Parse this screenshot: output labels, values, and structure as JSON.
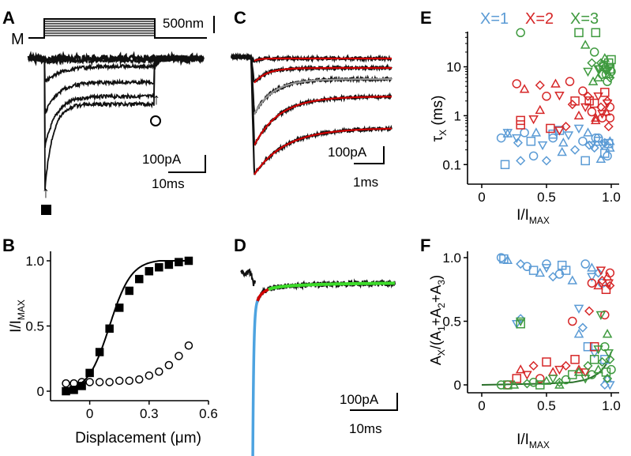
{
  "panel_labels": {
    "A": "A",
    "B": "B",
    "C": "C",
    "D": "D",
    "E": "E",
    "F": "F"
  },
  "colors": {
    "x1": "#5b9bd5",
    "x2": "#d62728",
    "x3": "#3f9a3f",
    "trace": "#111111",
    "fit_red": "#d00000",
    "fit_gray": "#9a9a9a",
    "fit_green": "#3ddc2a",
    "fit_blue": "#4da3e0"
  },
  "panel_a": {
    "stimulus_label": "M",
    "stim_scale_label": "500nm",
    "current_scale_label": "100pA",
    "time_scale_label": "10ms",
    "marker_filled": "filled-square",
    "marker_open": "open-circle"
  },
  "panel_c": {
    "current_scale_label": "100pA",
    "time_scale_label": "1ms"
  },
  "panel_d": {
    "current_scale_label": "100pA",
    "time_scale_label": "10ms"
  },
  "chart_data": [
    {
      "panel": "B",
      "type": "scatter",
      "title": "",
      "xlabel": "Displacement (μm)",
      "ylabel_main": "I/I",
      "ylabel_sub": "MAX",
      "xlim": [
        -0.15,
        0.6
      ],
      "ylim": [
        0,
        1.05
      ],
      "xticks": [
        0,
        0.3,
        0.6
      ],
      "xtick_labels": [
        "0",
        "0.3",
        "0.6"
      ],
      "yticks": [
        0,
        0.5,
        1.0
      ],
      "ytick_labels": [
        "0",
        "0.5",
        "1.0"
      ],
      "series": [
        {
          "name": "peak current",
          "marker": "filled-square",
          "x": [
            -0.12,
            -0.08,
            -0.04,
            0.0,
            0.05,
            0.1,
            0.15,
            0.2,
            0.25,
            0.3,
            0.35,
            0.4,
            0.45,
            0.5
          ],
          "y": [
            0.0,
            0.01,
            0.04,
            0.14,
            0.3,
            0.48,
            0.64,
            0.77,
            0.86,
            0.92,
            0.95,
            0.97,
            0.99,
            1.0
          ]
        },
        {
          "name": "steady-state current",
          "marker": "open-circle",
          "x": [
            -0.12,
            -0.08,
            -0.04,
            0.0,
            0.05,
            0.1,
            0.15,
            0.2,
            0.25,
            0.3,
            0.35,
            0.4,
            0.45,
            0.5
          ],
          "y": [
            0.06,
            0.06,
            0.07,
            0.07,
            0.07,
            0.07,
            0.08,
            0.08,
            0.09,
            0.12,
            0.15,
            0.2,
            0.27,
            0.35
          ]
        }
      ]
    },
    {
      "panel": "E",
      "type": "scatter",
      "xlabel_main": "I/I",
      "xlabel_sub": "MAX",
      "ylabel_main": "τ",
      "ylabel_sub": "X",
      "ylabel_tail": " (ms)",
      "xlim": [
        0,
        1.04
      ],
      "ylim_log10": [
        -1.4,
        1.72
      ],
      "xticks": [
        0,
        0.5,
        1.0
      ],
      "xtick_labels": [
        "0",
        "0.5",
        "1.0"
      ],
      "yticks": [
        0.1,
        1,
        10
      ],
      "ytick_labels": [
        "0.1",
        "1",
        "10"
      ],
      "series": [
        {
          "name": "X=1",
          "color_key": "x1",
          "x": [
            0.15,
            0.18,
            0.2,
            0.27,
            0.3,
            0.33,
            0.38,
            0.42,
            0.47,
            0.5,
            0.55,
            0.6,
            0.63,
            0.67,
            0.72,
            0.78,
            0.8,
            0.82,
            0.85,
            0.87,
            0.88,
            0.9,
            0.92,
            0.93,
            0.95,
            0.97,
            0.98,
            0.99,
            0.2,
            0.28,
            0.4,
            0.55,
            0.62,
            0.75,
            0.83,
            0.9,
            0.95,
            0.99
          ],
          "y": [
            0.35,
            0.1,
            0.43,
            0.35,
            0.12,
            0.45,
            0.3,
            0.45,
            0.25,
            0.12,
            0.35,
            0.5,
            0.28,
            0.4,
            0.2,
            0.3,
            0.12,
            0.45,
            0.25,
            0.22,
            0.35,
            0.3,
            0.13,
            0.25,
            0.28,
            0.15,
            0.27,
            0.22,
            0.45,
            0.28,
            0.15,
            0.42,
            0.18,
            0.55,
            0.25,
            0.35,
            0.17,
            0.3
          ]
        },
        {
          "name": "X=2",
          "color_key": "x2",
          "x": [
            0.27,
            0.3,
            0.33,
            0.4,
            0.45,
            0.5,
            0.53,
            0.57,
            0.6,
            0.65,
            0.68,
            0.72,
            0.75,
            0.8,
            0.82,
            0.85,
            0.87,
            0.88,
            0.9,
            0.92,
            0.93,
            0.95,
            0.96,
            0.97,
            0.98,
            0.99,
            0.3,
            0.45,
            0.6,
            0.7,
            0.78,
            0.83,
            0.88,
            0.93,
            0.97,
            0.99
          ],
          "y": [
            4.5,
            0.8,
            3.5,
            0.85,
            4.2,
            2.5,
            0.55,
            4.5,
            2.6,
            0.6,
            5.0,
            2.0,
            1.0,
            1.5,
            2.5,
            1.2,
            1.8,
            0.8,
            2.5,
            1.5,
            0.9,
            3.0,
            1.2,
            1.8,
            0.6,
            1.5,
            0.65,
            1.3,
            0.5,
            1.7,
            3.2,
            2.0,
            0.9,
            1.1,
            2.0,
            0.9
          ]
        },
        {
          "name": "X=3",
          "color_key": "x3",
          "x": [
            0.3,
            0.75,
            0.8,
            0.82,
            0.85,
            0.87,
            0.88,
            0.9,
            0.91,
            0.92,
            0.93,
            0.94,
            0.95,
            0.96,
            0.97,
            0.97,
            0.98,
            0.98,
            0.99,
            0.99,
            1.0,
            1.0,
            0.86,
            0.9,
            0.94,
            0.96,
            0.99
          ],
          "y": [
            50,
            50,
            28,
            8,
            12,
            20,
            50,
            6,
            9,
            12,
            7,
            10,
            15,
            8,
            9,
            5,
            12,
            7,
            10,
            6,
            8,
            14,
            5,
            9,
            11,
            7,
            9
          ]
        }
      ]
    },
    {
      "panel": "F",
      "type": "scatter",
      "xlabel_main": "I/I",
      "xlabel_sub": "MAX",
      "ylabel_parts": {
        "a": "A",
        "x": "X",
        "mid": "/(A",
        "one": "1",
        "plus1": "+A",
        "two": "2",
        "plus2": "+A",
        "three": "3",
        "close": ")"
      },
      "xlim": [
        0,
        1.04
      ],
      "ylim": [
        -0.03,
        1.03
      ],
      "xticks": [
        0,
        0.5,
        1.0
      ],
      "xtick_labels": [
        "0",
        "0.5",
        "1.0"
      ],
      "yticks": [
        0,
        0.5,
        1.0
      ],
      "ytick_labels": [
        "0",
        "0.5",
        "1.0"
      ],
      "series": [
        {
          "name": "X=1",
          "color_key": "x1",
          "x": [
            0.15,
            0.17,
            0.2,
            0.27,
            0.3,
            0.35,
            0.4,
            0.45,
            0.5,
            0.55,
            0.6,
            0.65,
            0.7,
            0.75,
            0.78,
            0.8,
            0.82,
            0.85,
            0.87,
            0.9,
            0.93,
            0.95,
            0.97,
            0.99,
            0.3,
            0.5,
            0.62,
            0.75,
            0.85,
            0.95
          ],
          "y": [
            1.0,
            0.99,
            0.98,
            0.48,
            0.95,
            0.93,
            0.9,
            0.88,
            0.92,
            0.85,
            0.87,
            0.9,
            0.82,
            0.6,
            0.45,
            0.95,
            0.3,
            0.92,
            0.25,
            0.88,
            0.8,
            0.2,
            0.05,
            0.0,
            0.52,
            0.95,
            0.94,
            0.4,
            0.85,
            0.0
          ]
        },
        {
          "name": "X=2",
          "color_key": "x2",
          "x": [
            0.2,
            0.27,
            0.3,
            0.35,
            0.4,
            0.45,
            0.5,
            0.55,
            0.6,
            0.65,
            0.7,
            0.72,
            0.75,
            0.8,
            0.83,
            0.85,
            0.87,
            0.9,
            0.92,
            0.93,
            0.95,
            0.96,
            0.97,
            0.98,
            0.99,
            0.99
          ],
          "y": [
            0.0,
            0.05,
            0.12,
            0.08,
            0.15,
            0.05,
            0.18,
            0.1,
            0.12,
            0.15,
            0.5,
            0.2,
            0.12,
            0.1,
            0.58,
            0.8,
            0.3,
            0.78,
            0.9,
            0.82,
            0.55,
            0.75,
            0.85,
            0.8,
            0.78,
            0.88
          ]
        },
        {
          "name": "X=3",
          "color_key": "x3",
          "x": [
            0.15,
            0.2,
            0.25,
            0.3,
            0.35,
            0.4,
            0.45,
            0.5,
            0.55,
            0.6,
            0.65,
            0.7,
            0.75,
            0.8,
            0.82,
            0.85,
            0.87,
            0.9,
            0.92,
            0.93,
            0.95,
            0.96,
            0.97,
            0.98,
            0.99,
            1.0,
            0.3,
            0.6,
            0.9,
            0.97
          ],
          "y": [
            0.0,
            0.0,
            0.0,
            0.5,
            0.01,
            0.02,
            0.0,
            0.03,
            0.05,
            0.02,
            0.04,
            0.08,
            0.1,
            0.05,
            0.15,
            0.08,
            0.2,
            0.12,
            0.55,
            0.18,
            0.3,
            0.1,
            0.4,
            0.25,
            0.2,
            0.12,
            0.48,
            0.0,
            0.28,
            0.05
          ]
        }
      ],
      "fit_line": {
        "x": [
          0,
          0.5,
          0.7,
          0.8,
          0.85,
          0.9,
          0.93,
          0.96,
          0.98,
          1.0
        ],
        "y": [
          0.0,
          0.01,
          0.02,
          0.04,
          0.06,
          0.09,
          0.12,
          0.16,
          0.2,
          0.26
        ]
      }
    }
  ]
}
